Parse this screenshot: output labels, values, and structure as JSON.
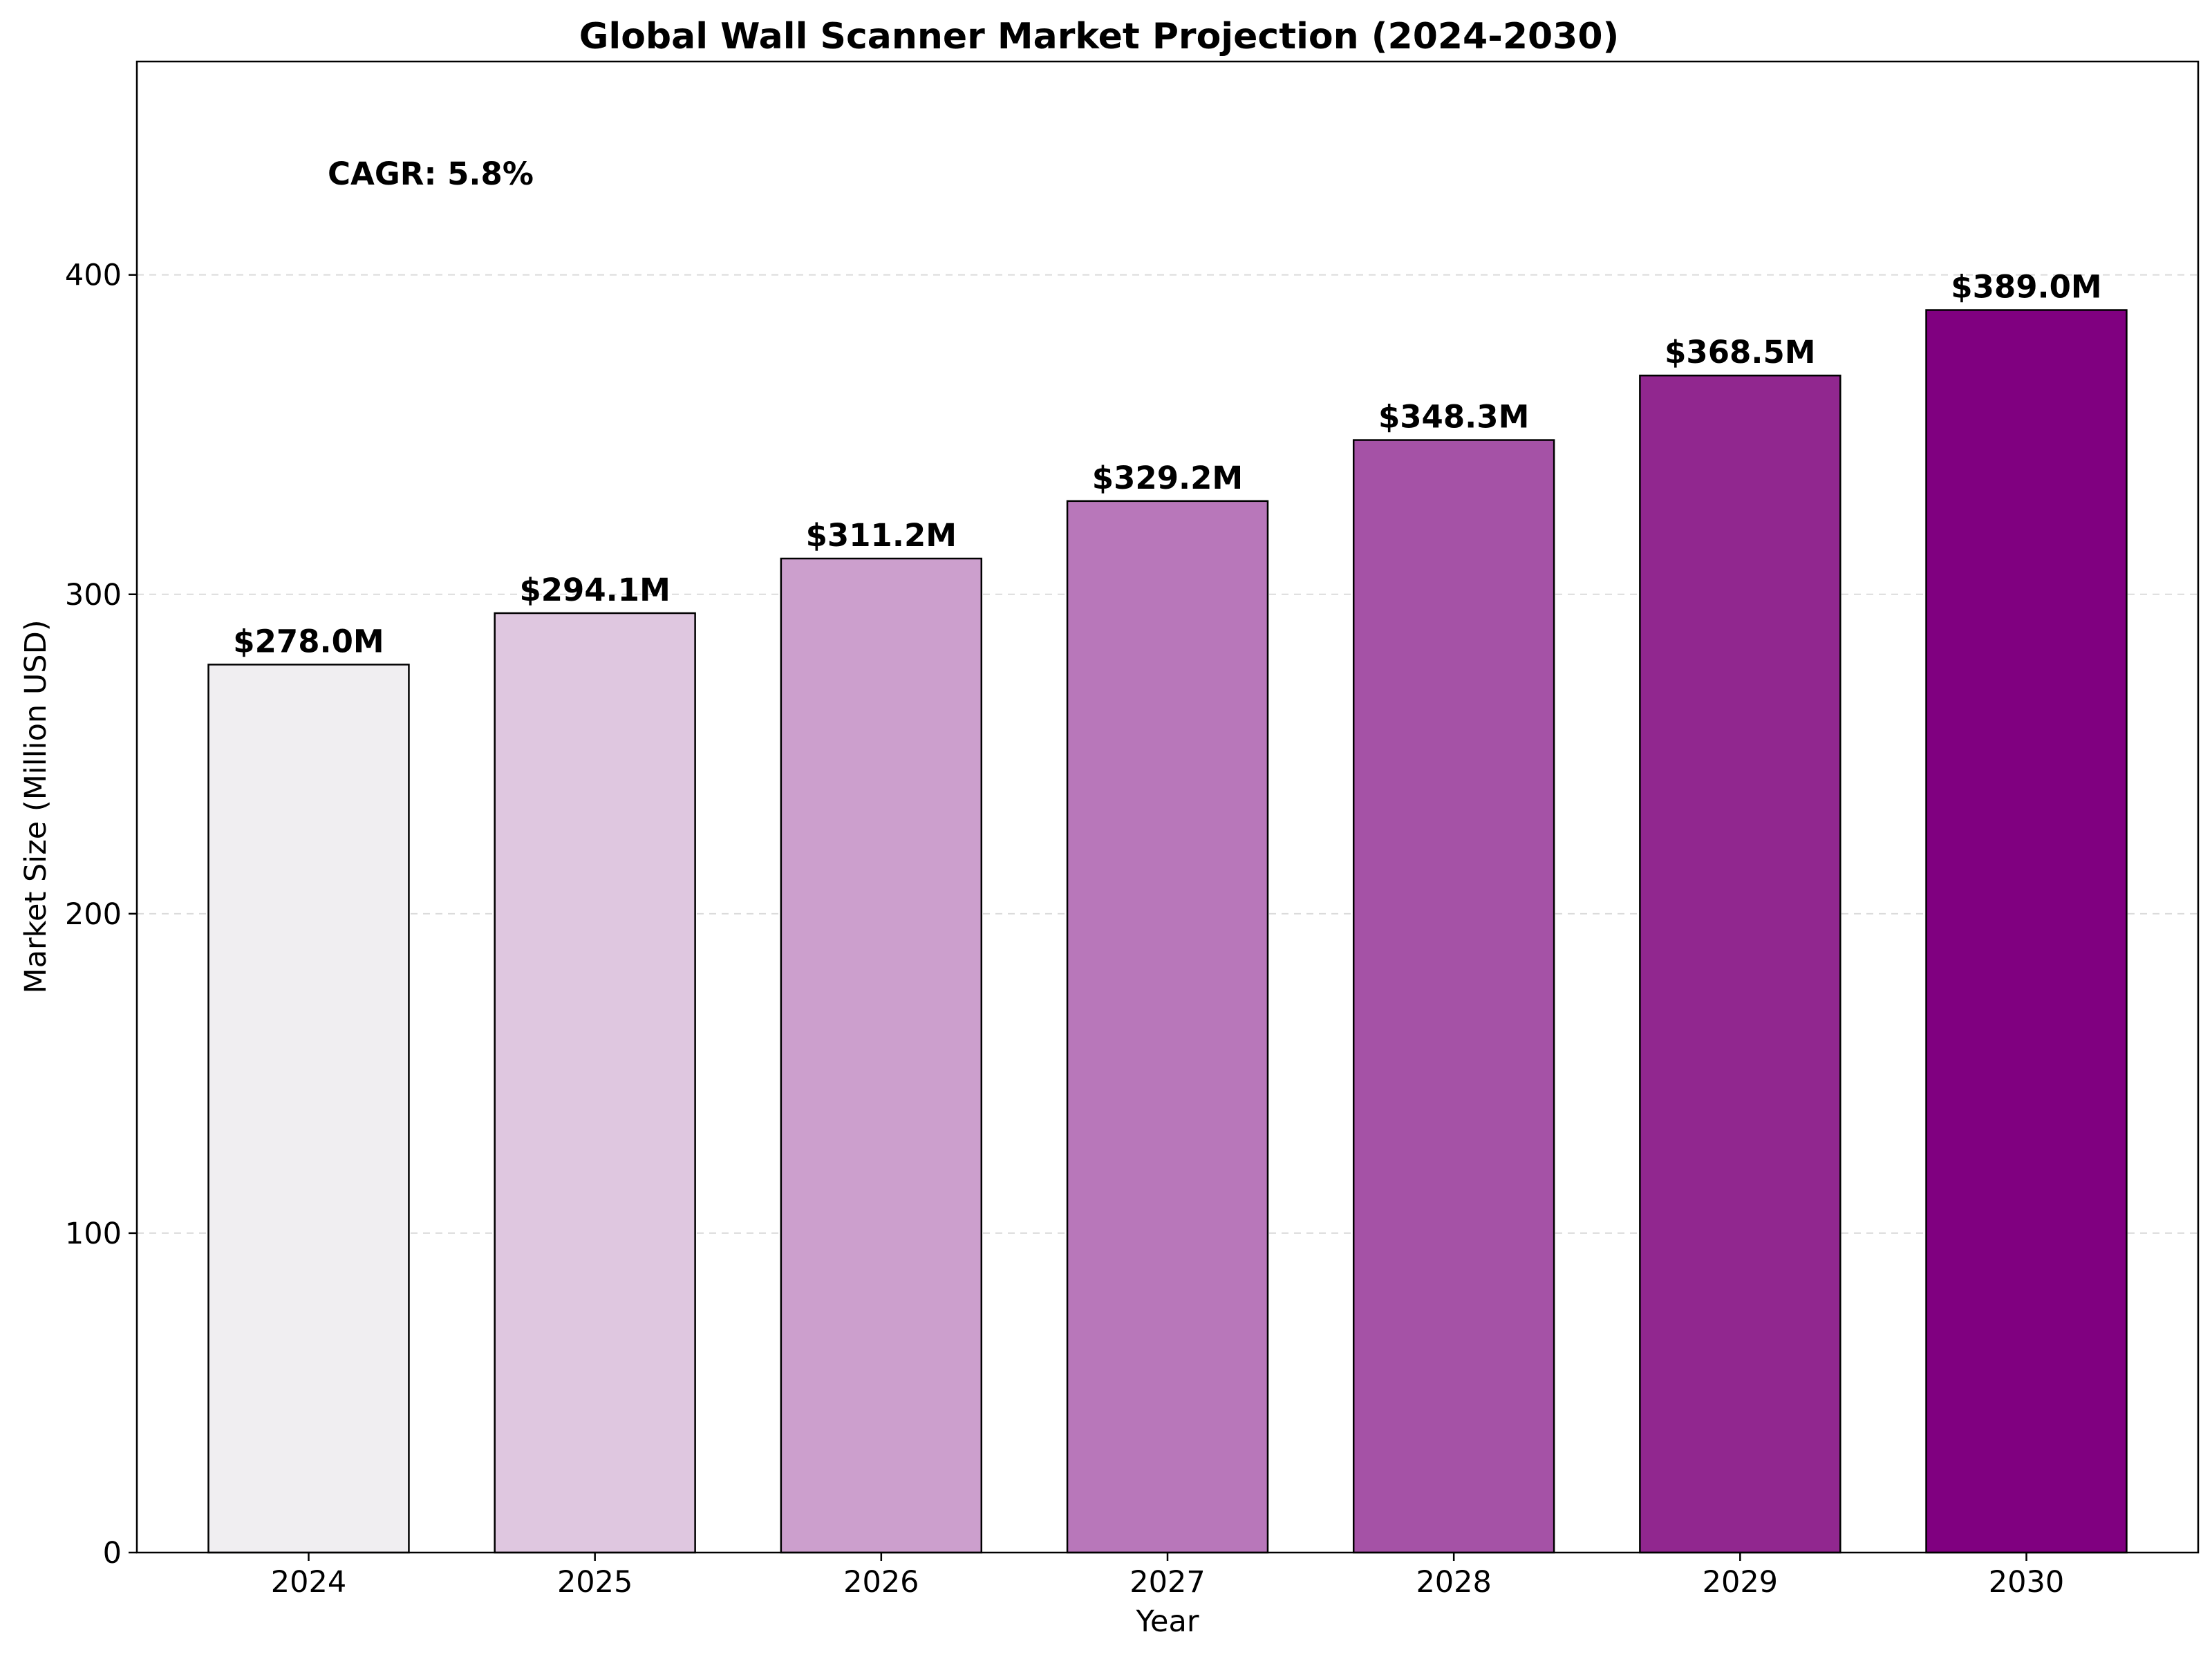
{
  "chart_data": {
    "type": "bar",
    "title": "Global Wall Scanner Market Projection (2024-2030)",
    "xlabel": "Year",
    "ylabel": "Market Size (Million USD)",
    "categories": [
      "2024",
      "2025",
      "2026",
      "2027",
      "2028",
      "2029",
      "2030"
    ],
    "values": [
      278.0,
      294.1,
      311.2,
      329.2,
      348.3,
      368.5,
      389.0
    ],
    "data_labels": [
      "$278.0M",
      "$294.1M",
      "$311.2M",
      "$329.2M",
      "$348.3M",
      "$368.5M",
      "$389.0M"
    ],
    "colors": [
      "#f0eef1",
      "#dfc7e0",
      "#cc9fcd",
      "#b877ba",
      "#a552a6",
      "#91278f",
      "#800080"
    ],
    "ylim": [
      0,
      466.8
    ],
    "yticks": [
      0,
      100,
      200,
      300,
      400
    ],
    "grid": "y-dashed",
    "annotation": "CAGR: 5.8%"
  }
}
